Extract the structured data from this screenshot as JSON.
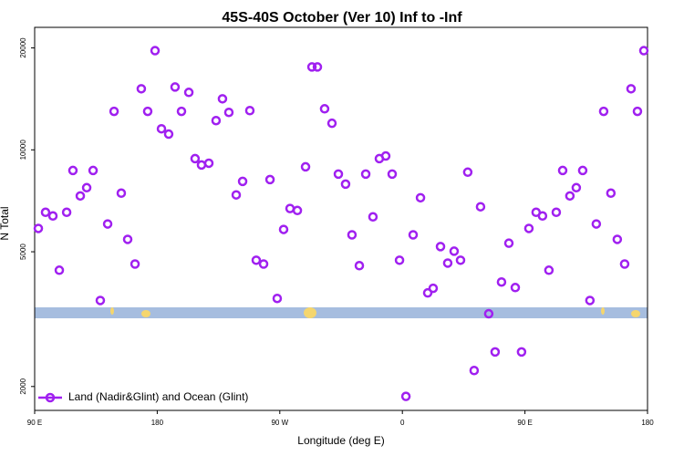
{
  "chart_data": {
    "type": "scatter",
    "title": "45S-40S October (Ver 10)   Inf to -Inf",
    "x_label": "Longitude (deg E)",
    "y_label": "N Total",
    "log_y": true,
    "legend_position": "bottom-left",
    "xlim": [
      90,
      540
    ],
    "ylim": [
      1700,
      23000
    ],
    "xticks": [
      {
        "value": 90,
        "label": "90 E"
      },
      180,
      {
        "value": 270,
        "label": "90 W"
      },
      {
        "value": 360,
        "label": "0"
      },
      {
        "value": 450,
        "label": "90 E"
      },
      {
        "value": 540,
        "label": "180"
      }
    ],
    "yticks": [
      2000,
      5000,
      10000,
      20000
    ],
    "series": [
      {
        "name": "Land (Nadir&Glint) and Ocean (Glint)",
        "color": "#a020f0",
        "x": [
          92.7,
          98,
          103.4,
          108.1,
          113.5,
          118.1,
          123.5,
          128.2,
          132.9,
          138.2,
          143.6,
          148.3,
          153.6,
          158.3,
          163.7,
          168.3,
          173,
          178.4,
          183.1,
          188.4,
          193.1,
          197.8,
          203.2,
          207.8,
          212.5,
          217.9,
          223.2,
          227.9,
          232.6,
          238,
          242.7,
          248,
          252.7,
          258.1,
          262.8,
          268.1,
          272.8,
          277.5,
          282.9,
          288.9,
          293.6,
          297.6,
          302.9,
          308.3,
          313,
          318.3,
          323,
          328.4,
          333.1,
          338.4,
          343.1,
          347.8,
          352.5,
          357.9,
          362.6,
          367.9,
          373.3,
          378.6,
          382.6,
          388,
          393.3,
          398,
          402.7,
          408,
          412.7,
          417.4,
          423.4,
          428.1,
          432.8,
          438.2,
          442.9,
          447.5,
          452.9,
          458.2,
          462.9,
          467.6,
          473,
          477.7,
          483,
          487.7,
          492.4,
          497.7,
          502.4,
          507.8,
          513.1,
          517.8,
          523.2,
          527.9,
          532.6,
          537.3
        ],
        "values": [
          5860,
          6540,
          6380,
          4410,
          6540,
          8690,
          7310,
          7730,
          8690,
          3590,
          6040,
          12990,
          7450,
          5440,
          4600,
          15150,
          12990,
          19630,
          11540,
          11130,
          15330,
          12990,
          14780,
          9420,
          9020,
          9130,
          12200,
          14150,
          12900,
          7360,
          8070,
          13060,
          4720,
          4600,
          8170,
          3640,
          5820,
          6710,
          6620,
          8910,
          17570,
          17570,
          13220,
          11980,
          8480,
          7920,
          5610,
          4550,
          8480,
          6340,
          9420,
          9590,
          8480,
          4720,
          1870,
          5610,
          7220,
          3780,
          3900,
          5180,
          4630,
          5020,
          4720,
          8590,
          2230,
          6790,
          3280,
          2530,
          4070,
          5300,
          3920,
          2530,
          5860,
          6540,
          6380,
          4410,
          6540,
          8690,
          7310,
          7730,
          8690,
          3590,
          6040,
          12990,
          7450,
          5440,
          4600,
          15150,
          12990,
          19630
        ]
      }
    ]
  }
}
